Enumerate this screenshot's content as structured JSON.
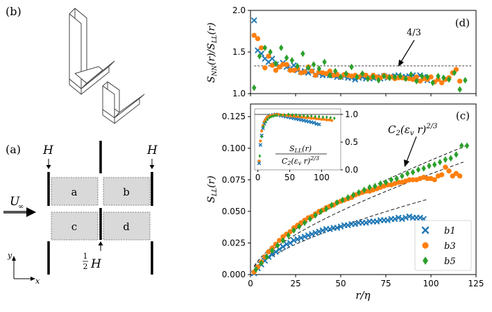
{
  "figure": {
    "panel_labels": {
      "a": "(a)",
      "b": "(b)",
      "c": "(c)",
      "d": "(d)"
    },
    "schematic": {
      "h_left": "H",
      "h_right": "H",
      "half_h_num": "1",
      "half_h_den": "2",
      "half_h_var": "H",
      "flow_label": "U",
      "flow_sub": "∞",
      "boxes": [
        "a",
        "b",
        "c",
        "d"
      ],
      "axis_y": "y",
      "axis_x": "x"
    }
  },
  "colors": {
    "b1": "#1f77b4",
    "b3": "#ff7f0e",
    "b5": "#2ca02c",
    "ref": "#000000"
  },
  "chart_data": [
    {
      "id": "d",
      "type": "scatter",
      "ylabel": "S_NN(r)/S_LL(r)",
      "xlim": [
        0,
        125
      ],
      "ylim": [
        1.0,
        2.0
      ],
      "yticks": [
        "1.0",
        "1.5",
        "2.0"
      ],
      "annotation": "4/3",
      "reference_value": 1.3333,
      "series": [
        {
          "name": "b1",
          "x": [
            2,
            4,
            6,
            8,
            10,
            12,
            14,
            16,
            18,
            20,
            22,
            24,
            26,
            28,
            30,
            32,
            34,
            36,
            38,
            40,
            42,
            44,
            46,
            48,
            50,
            52,
            54,
            56,
            58,
            60,
            62,
            64,
            66,
            68,
            70,
            72,
            74,
            76,
            78,
            80,
            82,
            84,
            86,
            88,
            90,
            92,
            94,
            96,
            98
          ],
          "y": [
            1.88,
            1.52,
            1.48,
            1.42,
            1.38,
            1.42,
            1.35,
            1.33,
            1.37,
            1.32,
            1.3,
            1.34,
            1.28,
            1.26,
            1.27,
            1.25,
            1.27,
            1.23,
            1.24,
            1.22,
            1.23,
            1.22,
            1.22,
            1.2,
            1.2,
            1.21,
            1.19,
            1.19,
            1.17,
            1.19,
            1.2,
            1.18,
            1.18,
            1.19,
            1.2,
            1.18,
            1.21,
            1.19,
            1.2,
            1.21,
            1.22,
            1.2,
            1.2,
            1.21,
            1.22,
            1.19,
            1.22,
            1.2,
            1.16
          ]
        },
        {
          "name": "b3",
          "x": [
            2,
            4,
            6,
            8,
            10,
            12,
            14,
            16,
            18,
            20,
            22,
            24,
            26,
            28,
            30,
            32,
            34,
            36,
            38,
            40,
            42,
            44,
            46,
            48,
            50,
            52,
            54,
            56,
            58,
            60,
            62,
            64,
            66,
            68,
            70,
            72,
            74,
            76,
            78,
            80,
            82,
            84,
            86,
            88,
            90,
            92,
            94,
            96,
            98,
            100,
            102,
            104,
            106,
            108,
            110,
            112,
            114,
            116
          ],
          "y": [
            1.7,
            1.66,
            1.55,
            1.31,
            1.45,
            1.34,
            1.28,
            1.32,
            1.35,
            1.35,
            1.28,
            1.28,
            1.3,
            1.25,
            1.26,
            1.32,
            1.27,
            1.22,
            1.26,
            1.25,
            1.24,
            1.27,
            1.22,
            1.23,
            1.2,
            1.23,
            1.22,
            1.21,
            1.22,
            1.2,
            1.23,
            1.22,
            1.19,
            1.22,
            1.2,
            1.19,
            1.22,
            1.2,
            1.2,
            1.18,
            1.19,
            1.19,
            1.18,
            1.18,
            1.17,
            1.2,
            1.15,
            1.18,
            1.17,
            1.2,
            1.14,
            1.17,
            1.13,
            1.17,
            1.19,
            1.25,
            1.29,
            1.15
          ]
        },
        {
          "name": "b5",
          "x": [
            2,
            5,
            8,
            11,
            14,
            17,
            20,
            23,
            26,
            29,
            32,
            35,
            38,
            41,
            44,
            47,
            50,
            53,
            56,
            59,
            62,
            65,
            68,
            71,
            74,
            77,
            80,
            83,
            86,
            89,
            92,
            95,
            98,
            101,
            104,
            107,
            110,
            113,
            116,
            119
          ],
          "y": [
            1.07,
            1.45,
            1.55,
            1.5,
            1.36,
            1.55,
            1.43,
            1.4,
            1.33,
            1.48,
            1.31,
            1.35,
            1.3,
            1.38,
            1.22,
            1.27,
            1.2,
            1.24,
            1.32,
            1.2,
            1.24,
            1.18,
            1.2,
            1.16,
            1.21,
            1.19,
            1.2,
            1.21,
            1.18,
            1.23,
            1.15,
            1.21,
            1.2,
            1.13,
            1.21,
            1.19,
            1.17,
            1.25,
            1.05,
            1.16
          ]
        }
      ]
    },
    {
      "id": "c",
      "type": "scatter",
      "xlabel": "r/η",
      "ylabel": "S_LL(r)",
      "xlim": [
        0,
        125
      ],
      "ylim": [
        0,
        0.135
      ],
      "xticks": [
        "0",
        "25",
        "50",
        "75",
        "100",
        "125"
      ],
      "yticks": [
        "0.000",
        "0.025",
        "0.050",
        "0.075",
        "0.100",
        "0.125"
      ],
      "annotation": "C2(εv r)^(2/3)",
      "legend": [
        "b1",
        "b3",
        "b5"
      ],
      "legend_position": "lower-right",
      "series": [
        {
          "name": "b1",
          "x": [
            2,
            4,
            6,
            8,
            10,
            12,
            14,
            16,
            18,
            20,
            22,
            24,
            26,
            28,
            30,
            32,
            34,
            36,
            38,
            40,
            42,
            44,
            46,
            48,
            50,
            52,
            54,
            56,
            58,
            60,
            62,
            64,
            66,
            68,
            70,
            72,
            74,
            76,
            78,
            80,
            82,
            84,
            86,
            88,
            90,
            92,
            94,
            96
          ],
          "y": [
            0.001,
            0.005,
            0.008,
            0.011,
            0.014,
            0.016,
            0.018,
            0.02,
            0.022,
            0.024,
            0.025,
            0.027,
            0.028,
            0.029,
            0.03,
            0.031,
            0.032,
            0.033,
            0.034,
            0.035,
            0.036,
            0.036,
            0.037,
            0.037,
            0.038,
            0.039,
            0.039,
            0.04,
            0.04,
            0.041,
            0.041,
            0.041,
            0.042,
            0.042,
            0.042,
            0.043,
            0.043,
            0.043,
            0.044,
            0.044,
            0.045,
            0.044,
            0.045,
            0.046,
            0.045,
            0.045,
            0.045,
            0.044
          ]
        },
        {
          "name": "b3",
          "x": [
            2,
            4,
            6,
            8,
            10,
            12,
            14,
            16,
            18,
            20,
            22,
            24,
            26,
            28,
            30,
            32,
            34,
            36,
            38,
            40,
            42,
            44,
            46,
            48,
            50,
            52,
            54,
            56,
            58,
            60,
            62,
            64,
            66,
            68,
            70,
            72,
            74,
            76,
            78,
            80,
            82,
            84,
            86,
            88,
            90,
            92,
            94,
            96,
            98,
            100,
            102,
            104,
            106,
            108,
            110,
            112,
            114,
            116
          ],
          "y": [
            0.002,
            0.006,
            0.01,
            0.014,
            0.018,
            0.021,
            0.024,
            0.027,
            0.03,
            0.032,
            0.034,
            0.037,
            0.039,
            0.041,
            0.043,
            0.045,
            0.046,
            0.048,
            0.05,
            0.051,
            0.053,
            0.054,
            0.055,
            0.057,
            0.058,
            0.059,
            0.06,
            0.061,
            0.063,
            0.064,
            0.065,
            0.066,
            0.066,
            0.067,
            0.068,
            0.069,
            0.07,
            0.071,
            0.071,
            0.072,
            0.073,
            0.073,
            0.074,
            0.075,
            0.075,
            0.075,
            0.076,
            0.077,
            0.076,
            0.076,
            0.075,
            0.078,
            0.079,
            0.085,
            0.082,
            0.078,
            0.08,
            0.078
          ]
        },
        {
          "name": "b5",
          "x": [
            3,
            6,
            9,
            12,
            15,
            18,
            21,
            24,
            27,
            30,
            33,
            36,
            39,
            42,
            45,
            48,
            51,
            54,
            57,
            60,
            63,
            66,
            69,
            72,
            75,
            78,
            81,
            84,
            87,
            90,
            93,
            96,
            99,
            102,
            105,
            108,
            111,
            114,
            117,
            120
          ],
          "y": [
            0.004,
            0.009,
            0.014,
            0.019,
            0.023,
            0.027,
            0.031,
            0.035,
            0.038,
            0.041,
            0.044,
            0.047,
            0.05,
            0.052,
            0.055,
            0.057,
            0.059,
            0.061,
            0.063,
            0.065,
            0.067,
            0.069,
            0.07,
            0.072,
            0.073,
            0.075,
            0.076,
            0.078,
            0.08,
            0.081,
            0.083,
            0.084,
            0.086,
            0.087,
            0.089,
            0.091,
            0.092,
            0.095,
            0.102,
            0.102
          ]
        }
      ],
      "reference_curves": [
        {
          "name": "b5-fit",
          "coef": 0.0042,
          "xmax": 120
        },
        {
          "name": "b3-fit",
          "coef": 0.0037,
          "xmax": 118
        },
        {
          "name": "b1-fit",
          "coef": 0.0028,
          "xmax": 98
        }
      ]
    },
    {
      "id": "c-inset",
      "type": "scatter",
      "ylabel": "S_LL(r) / C2(εv r)^(2/3)",
      "xlim": [
        -5,
        130
      ],
      "ylim": [
        0,
        1.1
      ],
      "xticks": [
        "0",
        "50",
        "100"
      ],
      "yticks": [
        "0.0",
        "0.5",
        "1.0"
      ],
      "reference_value": 1.0,
      "series": [
        {
          "name": "b1",
          "x": [
            2,
            4,
            6,
            8,
            10,
            12,
            14,
            16,
            18,
            20,
            24,
            28,
            32,
            36,
            40,
            44,
            48,
            52,
            56,
            60,
            64,
            68,
            72,
            76,
            80,
            84,
            88,
            92,
            96
          ],
          "y": [
            0.12,
            0.45,
            0.62,
            0.75,
            0.83,
            0.88,
            0.92,
            0.95,
            0.97,
            0.98,
            0.99,
            1.0,
            0.99,
            0.98,
            0.97,
            0.96,
            0.95,
            0.94,
            0.93,
            0.92,
            0.91,
            0.9,
            0.89,
            0.88,
            0.87,
            0.86,
            0.85,
            0.83,
            0.82
          ]
        },
        {
          "name": "b3",
          "x": [
            2,
            4,
            6,
            8,
            10,
            12,
            14,
            16,
            18,
            20,
            24,
            28,
            32,
            36,
            40,
            44,
            48,
            52,
            56,
            60,
            64,
            68,
            72,
            76,
            80,
            84,
            88,
            92,
            96,
            100,
            104,
            108,
            112,
            116
          ],
          "y": [
            0.16,
            0.52,
            0.7,
            0.8,
            0.87,
            0.91,
            0.94,
            0.96,
            0.97,
            0.98,
            0.99,
            1.0,
            1.0,
            0.99,
            0.99,
            0.98,
            0.98,
            0.97,
            0.97,
            0.96,
            0.96,
            0.95,
            0.95,
            0.94,
            0.94,
            0.93,
            0.93,
            0.92,
            0.92,
            0.91,
            0.91,
            0.9,
            0.9,
            0.89
          ]
        },
        {
          "name": "b5",
          "x": [
            3,
            6,
            9,
            12,
            15,
            18,
            21,
            24,
            27,
            30,
            36,
            42,
            48,
            54,
            60,
            66,
            72,
            78,
            84,
            90,
            96,
            102,
            108,
            114,
            120
          ],
          "y": [
            0.25,
            0.6,
            0.78,
            0.86,
            0.91,
            0.94,
            0.96,
            0.97,
            0.98,
            0.98,
            0.99,
            0.99,
            1.0,
            0.99,
            0.99,
            0.98,
            0.98,
            0.97,
            0.97,
            0.96,
            0.96,
            0.95,
            0.95,
            0.94,
            0.93
          ]
        }
      ]
    }
  ]
}
